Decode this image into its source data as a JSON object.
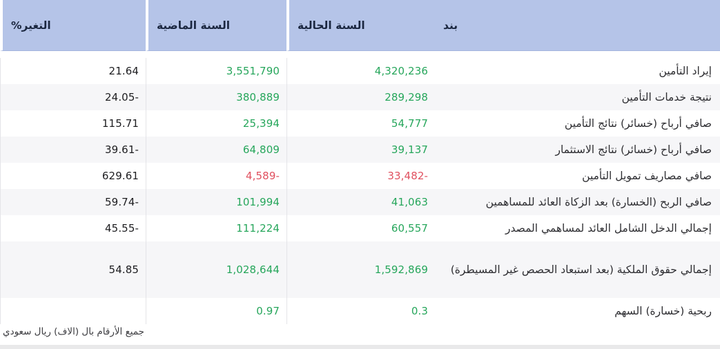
{
  "table": {
    "headers": {
      "item": "بند",
      "current": "السنة الحالية",
      "previous": "السنة الماضية",
      "change": "التغير%"
    },
    "rows": [
      {
        "item": "إيراد التأمين",
        "current": "4,320,236",
        "previous": "3,551,790",
        "change": "21.64"
      },
      {
        "item": "نتيجة خدمات التأمين",
        "current": "289,298",
        "previous": "380,889",
        "change": "24.05-"
      },
      {
        "item": "صافي أرباح (خسائر) نتائج التأمين",
        "current": "54,777",
        "previous": "25,394",
        "change": "115.71"
      },
      {
        "item": "صافي أرباح (خسائر) نتائج الاستثمار",
        "current": "39,137",
        "previous": "64,809",
        "change": "39.61-"
      },
      {
        "item": "صافي مصاريف تمويل التأمين",
        "current": "33,482-",
        "previous": "4,589-",
        "change": "629.61"
      },
      {
        "item": "صافي الربح (الخسارة) بعد الزكاة العائد للمساهمين",
        "current": "41,063",
        "previous": "101,994",
        "change": "59.74-"
      },
      {
        "item": "إجمالي الدخل الشامل العائد لمساهمي المصدر",
        "current": "60,557",
        "previous": "111,224",
        "change": "45.55-"
      },
      {
        "item": "إجمالي حقوق الملكية (بعد استبعاد الحصص غير المسيطرة)",
        "current": "1,592,869",
        "previous": "1,028,644",
        "change": "54.85"
      },
      {
        "item": "ربحية (خسارة) السهم",
        "current": "0.3",
        "previous": "0.97",
        "change": ""
      }
    ],
    "footnote": "جميع الأرقام بال (الاف) ريال سعودي"
  },
  "colors": {
    "header_bg": "#b5c4e8",
    "header_text": "#1b2740",
    "positive": "#26a65b",
    "negative": "#e0505f",
    "row_alt_bg": "#f6f6f8",
    "divider": "#e4e4e8"
  }
}
